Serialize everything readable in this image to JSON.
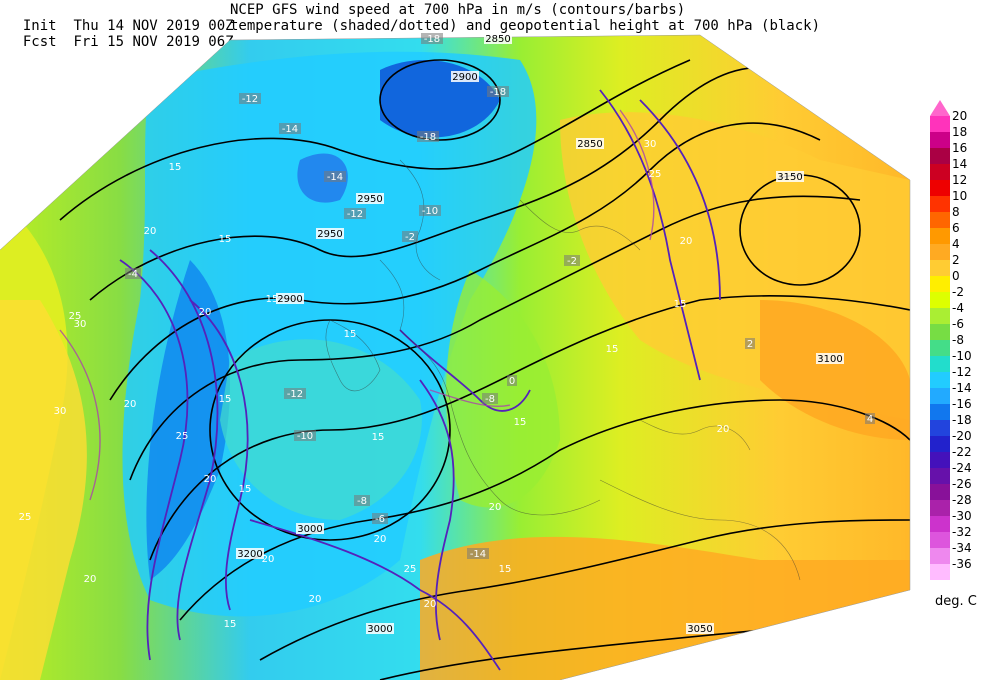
{
  "header": {
    "init_prefix": "Init",
    "init_value": "Thu 14 NOV 2019 00Z",
    "fcst_prefix": "Fcst",
    "fcst_value": "Fri 15 NOV 2019 06Z",
    "title_line1": "NCEP GFS wind speed at 700 hPa in m/s (contours/barbs)",
    "title_line2": "temperature (shaded/dotted) and geopotential height at 700 hPa (black)"
  },
  "colorbar": {
    "unit": "deg. C",
    "labels": [
      "20",
      "18",
      "16",
      "14",
      "12",
      "10",
      "8",
      "6",
      "4",
      "2",
      "0",
      "-2",
      "-4",
      "-6",
      "-8",
      "-10",
      "-12",
      "-14",
      "-16",
      "-18",
      "-20",
      "-22",
      "-24",
      "-26",
      "-28",
      "-30",
      "-32",
      "-34",
      "-36"
    ],
    "colors": [
      "#ff33bb",
      "#cc0088",
      "#aa0044",
      "#cc0022",
      "#ee0000",
      "#ff3300",
      "#ff6600",
      "#ff9900",
      "#ffaa22",
      "#ffcc33",
      "#ffee00",
      "#ddff00",
      "#aaee33",
      "#77dd44",
      "#44dd88",
      "#22ddcc",
      "#22ccff",
      "#22aaff",
      "#1177ee",
      "#2244dd",
      "#2222cc",
      "#4411bb",
      "#6611aa",
      "#881199",
      "#aa22aa",
      "#cc33cc",
      "#dd55dd",
      "#ee88ee",
      "#ffbbff"
    ]
  },
  "map_labels": {
    "height_contours": [
      "2850",
      "2900",
      "2950",
      "2950",
      "3000",
      "3000",
      "3050",
      "3100",
      "3150",
      "3200",
      "2900",
      "2850"
    ],
    "wind_labels": [
      "15",
      "20",
      "25",
      "30",
      "20",
      "15",
      "20",
      "15",
      "25",
      "30",
      "20",
      "15",
      "15",
      "20",
      "15",
      "20",
      "15",
      "20",
      "25",
      "20",
      "15",
      "20",
      "15",
      "25",
      "20",
      "15",
      "15",
      "20",
      "30",
      "25",
      "15",
      "20"
    ],
    "temp_labels": [
      "-18",
      "-18",
      "-18",
      "-14",
      "-14",
      "-12",
      "-12",
      "-10",
      "-10",
      "-8",
      "-8",
      "-6",
      "-4",
      "-2",
      "-2",
      "0",
      "2",
      "4",
      "-14",
      "-12"
    ]
  }
}
